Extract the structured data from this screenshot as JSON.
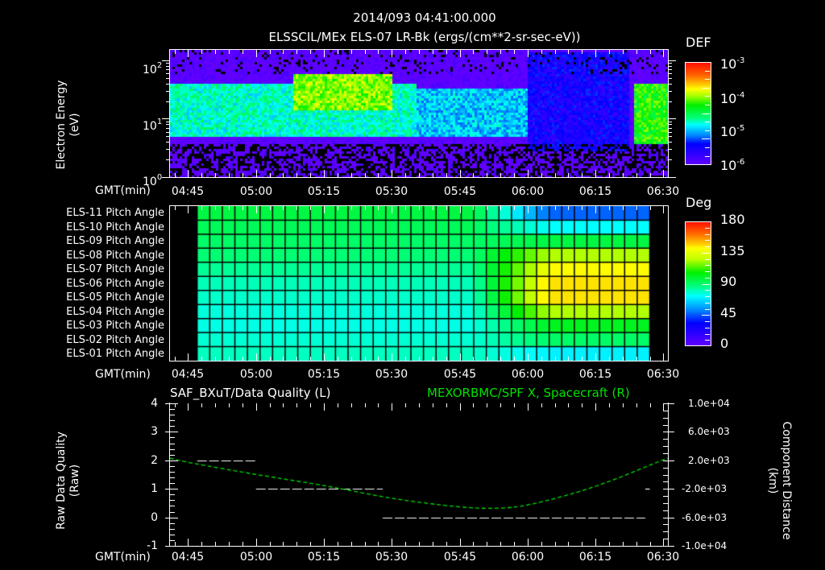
{
  "header": {
    "datetime": "2014/093 04:41:00.000",
    "subtitle": "ELSSCIL/MEx ELS-07 LR-Bk  (ergs/(cm**2-sr-sec-eV))"
  },
  "time_axis": {
    "label": "GMT(min)",
    "ticks": [
      "04:45",
      "05:00",
      "05:15",
      "05:30",
      "05:45",
      "06:00",
      "06:15",
      "06:30"
    ],
    "tick_minutes": [
      285,
      300,
      315,
      330,
      345,
      360,
      375,
      390
    ],
    "range_minutes": [
      281,
      391
    ]
  },
  "panel1": {
    "ylabel_line1": "Electron Energy",
    "ylabel_line2": "(eV)",
    "y_ticks": [
      {
        "base": "10",
        "exp": "2"
      },
      {
        "base": "10",
        "exp": "1"
      },
      {
        "base": "10",
        "exp": "0"
      }
    ],
    "colorbar": {
      "title": "DEF",
      "labels": [
        {
          "base": "10",
          "exp": "-3"
        },
        {
          "base": "10",
          "exp": "-4"
        },
        {
          "base": "10",
          "exp": "-5"
        },
        {
          "base": "10",
          "exp": "-6"
        }
      ]
    }
  },
  "panel2": {
    "row_labels": [
      "ELS-11 Pitch Angle",
      "ELS-10 Pitch Angle",
      "ELS-09 Pitch Angle",
      "ELS-08 Pitch Angle",
      "ELS-07 Pitch Angle",
      "ELS-06 Pitch Angle",
      "ELS-05 Pitch Angle",
      "ELS-04 Pitch Angle",
      "ELS-03 Pitch Angle",
      "ELS-02 Pitch Angle",
      "ELS-01 Pitch Angle"
    ],
    "colorbar": {
      "title": "Deg",
      "labels": [
        "180",
        "135",
        "90",
        "45",
        "0"
      ]
    }
  },
  "panel3": {
    "title_left": "SAF_BXuT/Data Quality (L)",
    "title_right": "MEXORBMC/SPF X, Spacecraft (R)",
    "ylabel_left_line1": "Raw Data Quality",
    "ylabel_left_line2": "(Raw)",
    "y_ticks_left": [
      "4",
      "3",
      "2",
      "1",
      "0",
      "-1"
    ],
    "ylabel_right_line1": "Component Distance",
    "ylabel_right_line2": "(km)",
    "y_ticks_right": [
      "1.0e+04",
      "6.0e+03",
      "2.0e+03",
      "-2.0e+03",
      "-6.0e+03",
      "-1.0e+04"
    ]
  },
  "chart_data": [
    {
      "type": "heatmap",
      "title": "ELSSCIL/MEx ELS-07 LR-Bk (ergs/(cm**2-sr-sec-eV))",
      "xlabel": "GMT(min)",
      "ylabel": "Electron Energy (eV)",
      "x_range": [
        "04:41",
        "06:31"
      ],
      "y_scale": "log",
      "ylim": [
        1,
        150
      ],
      "colorbar": {
        "label": "DEF",
        "scale": "log",
        "range": [
          1e-06,
          0.001
        ]
      },
      "features": [
        {
          "time": "04:41-05:35",
          "energy_eV": [
            5,
            40
          ],
          "level": 2e-05
        },
        {
          "time": "05:08-05:30",
          "energy_eV": [
            15,
            60
          ],
          "level": 0.0001
        },
        {
          "time": "05:35-06:00",
          "energy_eV": [
            5,
            35
          ],
          "level": 1.2e-05
        },
        {
          "time": "06:00-06:22",
          "energy_eV": [
            3,
            150
          ],
          "level": 3e-06
        },
        {
          "time": "06:23-06:31",
          "energy_eV": [
            4,
            40
          ],
          "level": 6e-05
        }
      ]
    },
    {
      "type": "heatmap",
      "title": "ELS Pitch Angle",
      "xlabel": "GMT(min)",
      "categories": [
        "ELS-11",
        "ELS-10",
        "ELS-09",
        "ELS-08",
        "ELS-07",
        "ELS-06",
        "ELS-05",
        "ELS-04",
        "ELS-03",
        "ELS-02",
        "ELS-01"
      ],
      "colorbar": {
        "label": "Deg",
        "range": [
          0,
          180
        ]
      },
      "x_start": "04:47",
      "x_end": "06:27",
      "n_columns": 36,
      "column_profiles": {
        "early_04:47-05:48": [
          95,
          92,
          90,
          88,
          84,
          80,
          78,
          76,
          75,
          77,
          79
        ],
        "late_06:05-06:27": [
          50,
          72,
          95,
          125,
          138,
          145,
          145,
          125,
          100,
          90,
          70
        ]
      }
    },
    {
      "type": "line",
      "title": "SAF_BXuT/Data Quality (L) / MEXORBMC/SPF X, Spacecraft (R)",
      "xlabel": "GMT(min)",
      "series": [
        {
          "name": "SAF_BXuT/Data Quality (L)",
          "axis": "left",
          "ylim": [
            -1,
            4
          ],
          "segments": [
            {
              "x": [
                "04:47",
                "05:00"
              ],
              "y": 2
            },
            {
              "x": [
                "05:00",
                "05:28"
              ],
              "y": 1
            },
            {
              "x": [
                "05:28",
                "06:26"
              ],
              "y": 0
            },
            {
              "x": [
                "06:26",
                "06:27"
              ],
              "y": 1
            }
          ]
        },
        {
          "name": "MEXORBMC/SPF X, Spacecraft (R)",
          "axis": "right",
          "ylim": [
            -10000,
            10000
          ],
          "x": [
            "04:41",
            "04:45",
            "05:00",
            "05:15",
            "05:30",
            "05:45",
            "05:53",
            "06:00",
            "06:15",
            "06:30",
            "06:31"
          ],
          "y": [
            2300,
            1700,
            0,
            -1500,
            -3400,
            -4600,
            -4800,
            -4400,
            -1800,
            2100,
            2300
          ]
        }
      ]
    }
  ]
}
